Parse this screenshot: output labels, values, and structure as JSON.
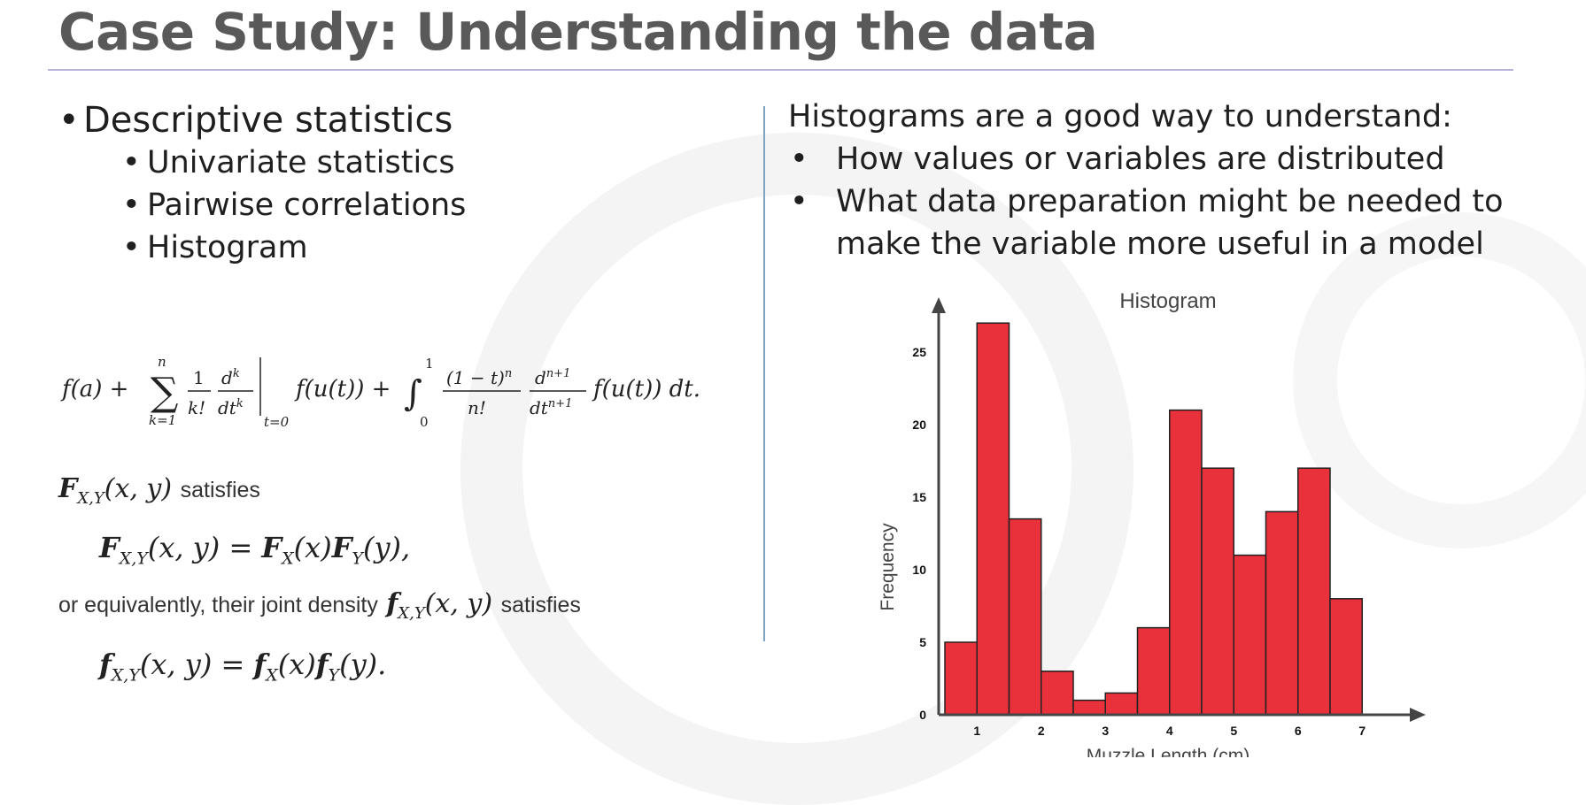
{
  "slide": {
    "title": "Case Study: Understanding the data"
  },
  "left": {
    "bullet": "Descriptive statistics",
    "sub_bullets": [
      "Univariate statistics",
      "Pairwise correlations",
      "Histogram"
    ]
  },
  "math": {
    "taylor": "f(a) + Σ_{k=1}^{n} (1/k!) d^k/dt^k |_{t=0} f(u(t)) + ∫_0^1 ((1 − t)^n / n!) d^{n+1}/dt^{n+1} f(u(t)) dt.",
    "satisfies": "satisfies",
    "equivalently": "or equivalently, their joint density",
    "satisfies2": "satisfies"
  },
  "right": {
    "lead": "Histograms are a good way to understand:",
    "items": [
      "How values or variables are distributed",
      "What data preparation might be needed to make the variable more useful in a model"
    ]
  },
  "chart_data": {
    "type": "bar",
    "title": "Histogram",
    "xlabel": "Muzzle Length (cm)",
    "ylabel": "Frequency",
    "x_ticks": [
      "1",
      "2",
      "3",
      "4",
      "5",
      "6",
      "7"
    ],
    "y_ticks": [
      "0",
      "5",
      "10",
      "15",
      "20",
      "25"
    ],
    "ylim": [
      0,
      30
    ],
    "bins": [
      {
        "start": 0.5,
        "end": 1.0,
        "value": 5
      },
      {
        "start": 1.0,
        "end": 1.5,
        "value": 27
      },
      {
        "start": 1.5,
        "end": 2.0,
        "value": 13.5
      },
      {
        "start": 2.0,
        "end": 2.5,
        "value": 3
      },
      {
        "start": 2.5,
        "end": 3.0,
        "value": 1
      },
      {
        "start": 3.0,
        "end": 3.5,
        "value": 1.5
      },
      {
        "start": 3.5,
        "end": 4.0,
        "value": 6
      },
      {
        "start": 4.0,
        "end": 4.5,
        "value": 21
      },
      {
        "start": 4.5,
        "end": 5.0,
        "value": 17
      },
      {
        "start": 5.0,
        "end": 5.5,
        "value": 11
      },
      {
        "start": 5.5,
        "end": 6.0,
        "value": 14
      },
      {
        "start": 6.0,
        "end": 6.5,
        "value": 17
      },
      {
        "start": 6.5,
        "end": 7.0,
        "value": 8
      }
    ],
    "bar_color": "#e8313a",
    "grid": false
  }
}
